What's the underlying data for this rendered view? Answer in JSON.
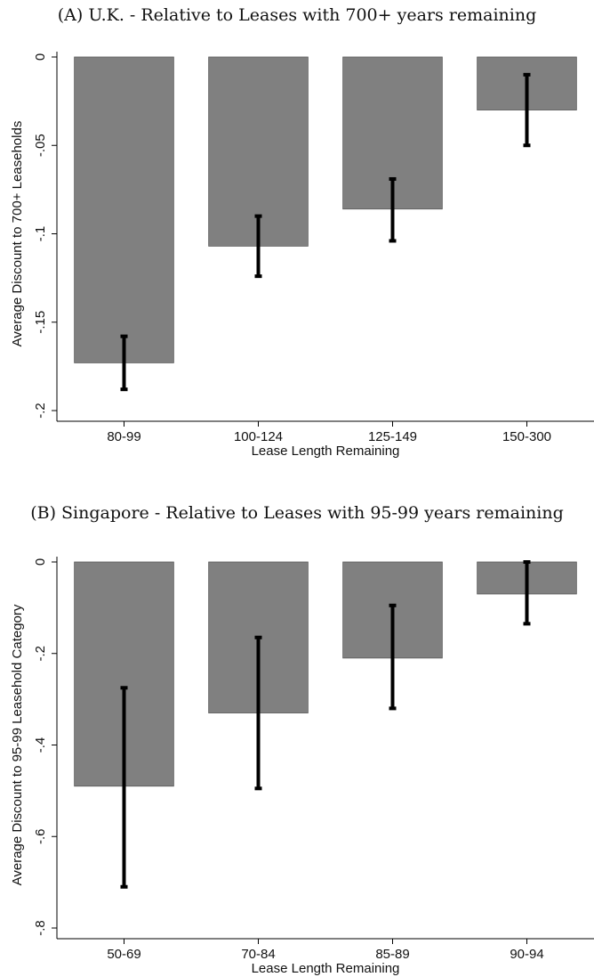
{
  "chart_data": [
    {
      "type": "bar",
      "title": "(A) U.K. - Relative to Leases with 700+ years remaining",
      "xlabel": "Lease Length Remaining",
      "ylabel": "Average Discount to 700+ Leaseholds",
      "categories": [
        "80-99",
        "100-124",
        "125-149",
        "150-300"
      ],
      "values": [
        -0.173,
        -0.107,
        -0.086,
        -0.03
      ],
      "error_low": [
        -0.188,
        -0.124,
        -0.104,
        -0.05
      ],
      "error_high": [
        -0.158,
        -0.09,
        -0.069,
        -0.01
      ],
      "ylim": [
        -0.2,
        0
      ],
      "yticks": [
        0,
        -0.05,
        -0.1,
        -0.15,
        -0.2
      ],
      "ytick_labels": [
        "0",
        "-.05",
        "-.1",
        "-.15",
        "-.2"
      ],
      "grid": false,
      "colors": {
        "bar": "#808080",
        "error_bar": "#000000"
      }
    },
    {
      "type": "bar",
      "title": "(B) Singapore - Relative to Leases with 95-99 years remaining",
      "xlabel": "Lease Length Remaining",
      "ylabel": "Average Discount to 95-99 Leasehold Category",
      "categories": [
        "50-69",
        "70-84",
        "85-89",
        "90-94"
      ],
      "values": [
        -0.49,
        -0.33,
        -0.21,
        -0.07
      ],
      "error_low": [
        -0.71,
        -0.495,
        -0.32,
        -0.135
      ],
      "error_high": [
        -0.275,
        -0.165,
        -0.095,
        0.0
      ],
      "ylim": [
        -0.8,
        0
      ],
      "yticks": [
        0,
        -0.2,
        -0.4,
        -0.6,
        -0.8
      ],
      "ytick_labels": [
        "0",
        "-.2",
        "-.4",
        "-.6",
        "-.8"
      ],
      "grid": false,
      "colors": {
        "bar": "#808080",
        "error_bar": "#000000"
      }
    }
  ]
}
